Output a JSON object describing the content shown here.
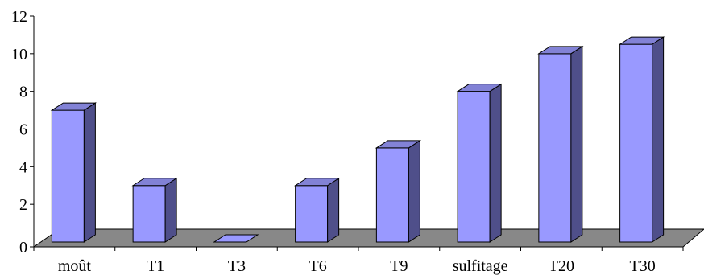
{
  "chart_data": {
    "type": "bar",
    "title": "",
    "xlabel": "",
    "ylabel": "",
    "categories": [
      "moût",
      "T1",
      "T3",
      "T6",
      "T9",
      "sulfitage",
      "T20",
      "T30"
    ],
    "values": [
      7,
      3,
      0,
      3,
      5,
      8,
      10,
      10.5
    ],
    "ylim": [
      0,
      12
    ],
    "yticks": [
      0,
      2,
      4,
      6,
      8,
      10,
      12
    ],
    "grid": false,
    "legend": "none",
    "style": "3d-column"
  },
  "colors": {
    "bar_front": "#9999ff",
    "bar_side": "#4f4f8a",
    "bar_top": "#8282d6",
    "floor": "#888888",
    "outline": "#000000"
  }
}
